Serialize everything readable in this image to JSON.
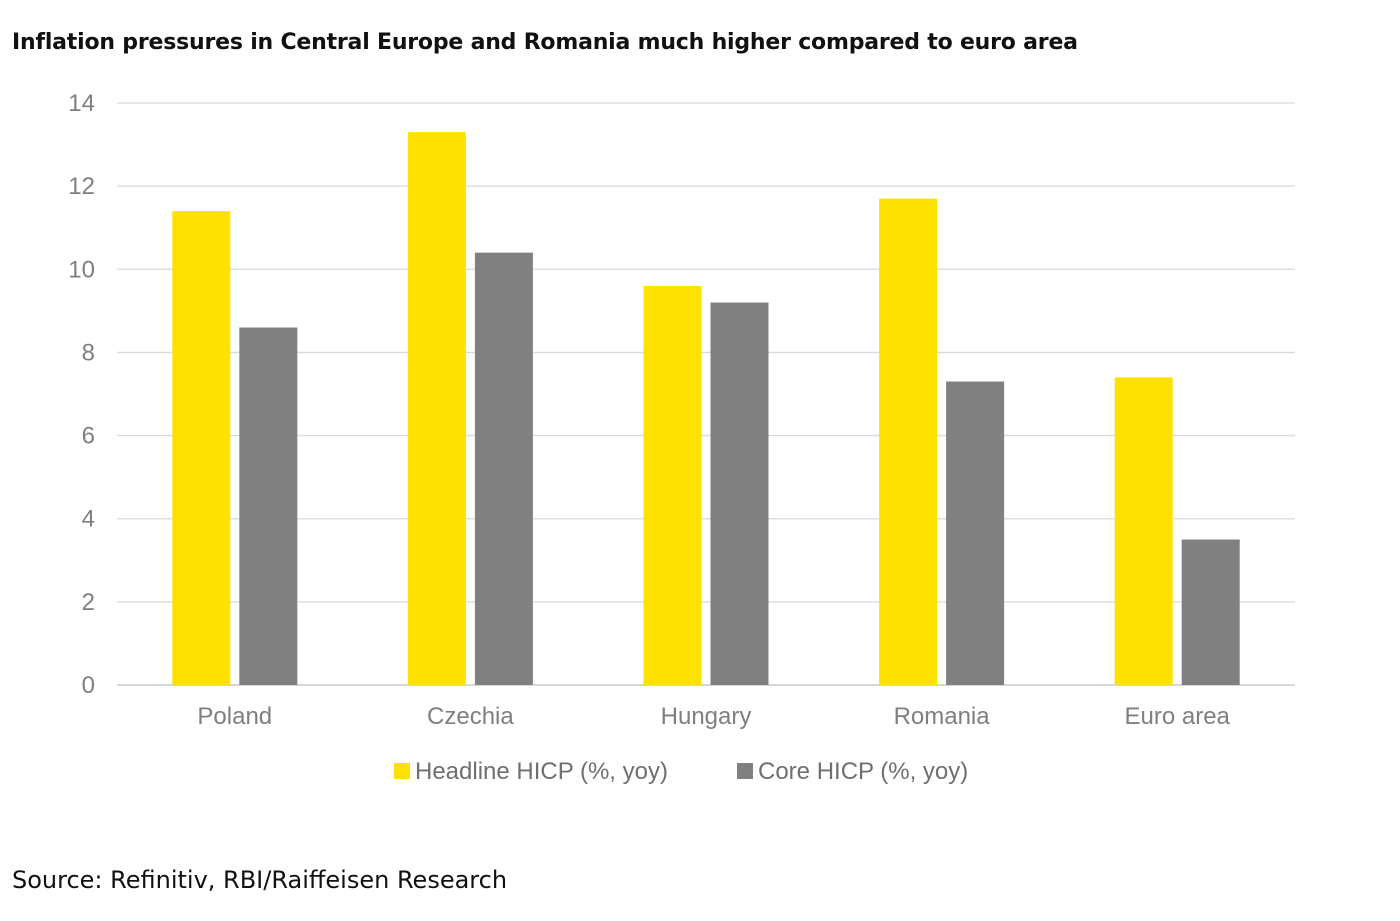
{
  "chart_data": {
    "type": "bar",
    "title": "Inflation pressures in Central Europe and Romania much higher compared to euro area",
    "categories": [
      "Poland",
      "Czechia",
      "Hungary",
      "Romania",
      "Euro area"
    ],
    "series": [
      {
        "name": "Headline HICP (%, yoy)",
        "color": "#FFE100",
        "values": [
          11.4,
          13.3,
          9.6,
          11.7,
          7.4
        ]
      },
      {
        "name": "Core HICP (%, yoy)",
        "color": "#808080",
        "values": [
          8.6,
          10.4,
          9.2,
          7.3,
          3.5
        ]
      }
    ],
    "y_ticks": [
      "0",
      "2",
      "4",
      "6",
      "8",
      "10",
      "12",
      "14"
    ],
    "ylim": [
      0,
      14
    ],
    "ytick_step": 2,
    "grid": true,
    "legend_position": "bottom",
    "xlabel": "",
    "ylabel": ""
  },
  "source": "Source: Refinitiv, RBI/Raiffeisen Research"
}
